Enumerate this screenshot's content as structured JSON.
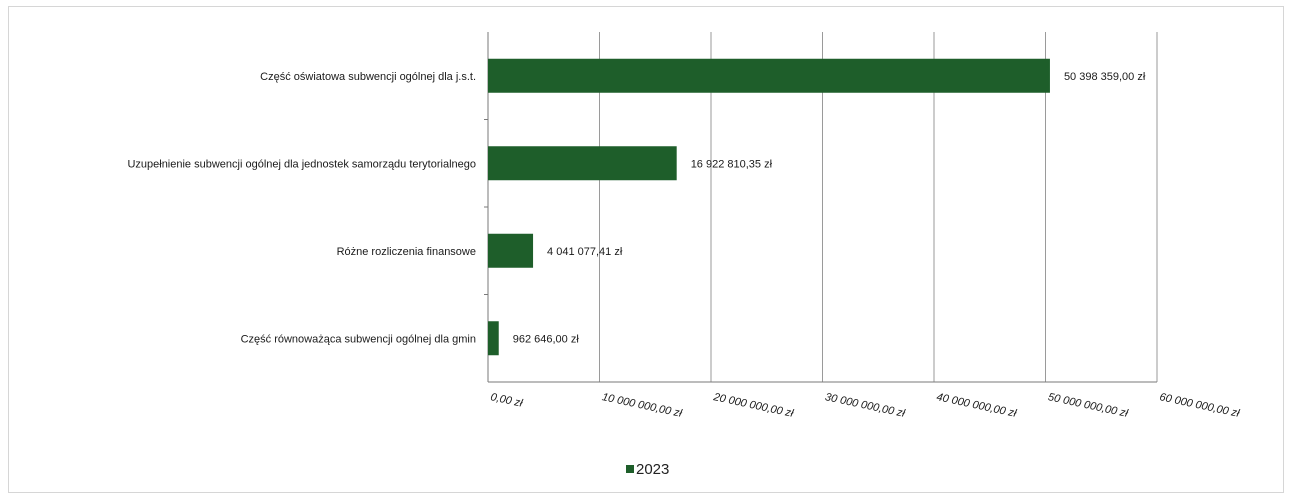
{
  "chart_data": {
    "type": "bar",
    "orientation": "horizontal",
    "categories": [
      "Część oświatowa subwencji ogólnej dla j.s.t.",
      "Uzupełnienie subwencji ogólnej dla jednostek samorządu terytorialnego",
      "Różne rozliczenia finansowe",
      "Część równoważąca subwencji ogólnej dla gmin"
    ],
    "series": [
      {
        "name": "2023",
        "color": "#1e5e2a",
        "values": [
          50398359.0,
          16922810.35,
          4041077.41,
          962646.0
        ],
        "value_labels": [
          "50 398 359,00 zł",
          "16 922 810,35 zł",
          "4 041 077,41 zł",
          "962 646,00 zł"
        ]
      }
    ],
    "xlim": [
      0,
      60000000
    ],
    "x_ticks": [
      0,
      10000000,
      20000000,
      30000000,
      40000000,
      50000000,
      60000000
    ],
    "x_tick_labels": [
      "0,00 zł",
      "10 000 000,00 zł",
      "20 000 000,00 zł",
      "30 000 000,00 zł",
      "40 000 000,00 zł",
      "50 000 000,00 zł",
      "60 000 000,00 zł"
    ],
    "grid": "vertical",
    "legend": "bottom"
  }
}
